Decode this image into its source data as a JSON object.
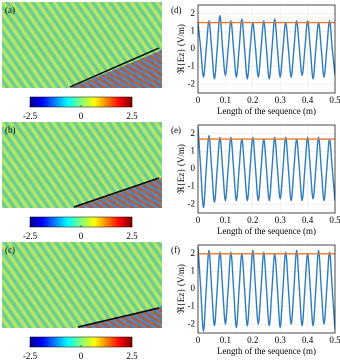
{
  "chart_data": [
    {
      "type": "field-map",
      "panel_label": "(a)",
      "colorbar": {
        "lim": [
          -2.5,
          2.5
        ],
        "ticks": [
          -2.5,
          0,
          2.5
        ]
      }
    },
    {
      "type": "field-map",
      "panel_label": "(b)",
      "colorbar": {
        "lim": [
          -2.5,
          2.5
        ],
        "ticks": [
          -2.5,
          0,
          2.5
        ]
      }
    },
    {
      "type": "field-map",
      "panel_label": "(c)",
      "colorbar": {
        "lim": [
          -2.5,
          2.5
        ],
        "ticks": [
          -2.5,
          0,
          2.5
        ]
      }
    },
    {
      "type": "line",
      "panel_label": "(d)",
      "xlabel": "Length of the sequence (m)",
      "ylabel": "ℜ{Ez} (V/m)",
      "xlim": [
        0,
        0.5
      ],
      "xticks": [
        0,
        0.1,
        0.2,
        0.3,
        0.4,
        0.5
      ],
      "ylim": [
        -2.5,
        2.5
      ],
      "yticks": [
        -2,
        -1,
        0,
        1,
        2
      ],
      "grid": true,
      "color": "#2f7dbd",
      "hline": {
        "value": 1.5,
        "color": "#e8772e"
      },
      "x": [
        0,
        0.01,
        0.02,
        0.03,
        0.04,
        0.05,
        0.06,
        0.07,
        0.08,
        0.09,
        0.1,
        0.11,
        0.12,
        0.13,
        0.14,
        0.15,
        0.16,
        0.17,
        0.18,
        0.19,
        0.2,
        0.21,
        0.22,
        0.23,
        0.24,
        0.25,
        0.26,
        0.27,
        0.28,
        0.29,
        0.3,
        0.31,
        0.32,
        0.33,
        0.34,
        0.35,
        0.36,
        0.37,
        0.38,
        0.39,
        0.4,
        0.41,
        0.42,
        0.43,
        0.44,
        0.45,
        0.46,
        0.47,
        0.48,
        0.49,
        0.5
      ],
      "values": [
        1.5,
        0,
        -1.6,
        0,
        1.6,
        0,
        -1.7,
        0,
        1.9,
        0,
        -1.5,
        0,
        1.6,
        0,
        -1.6,
        0,
        1.7,
        0,
        -1.7,
        0,
        1.5,
        0,
        -1.6,
        0,
        1.6,
        0,
        -1.7,
        0,
        1.7,
        0,
        -1.6,
        0,
        1.5,
        0,
        -1.6,
        0,
        1.6,
        0,
        -1.5,
        0,
        1.6,
        0,
        -1.7,
        0,
        1.5,
        0,
        -1.6,
        0,
        1.6,
        0,
        -1.5
      ]
    },
    {
      "type": "line",
      "panel_label": "(e)",
      "xlabel": "Length of the sequence (m)",
      "ylabel": "ℜ{Ez} (V/m)",
      "xlim": [
        0,
        0.5
      ],
      "xticks": [
        0,
        0.1,
        0.2,
        0.3,
        0.4,
        0.5
      ],
      "ylim": [
        -2.5,
        2.5
      ],
      "yticks": [
        -2,
        -1,
        0,
        1,
        2
      ],
      "grid": true,
      "color": "#2f7dbd",
      "hline": {
        "value": 1.7,
        "color": "#e8772e"
      },
      "x": [
        0,
        0.01,
        0.02,
        0.03,
        0.04,
        0.05,
        0.06,
        0.07,
        0.08,
        0.09,
        0.1,
        0.11,
        0.12,
        0.13,
        0.14,
        0.15,
        0.16,
        0.17,
        0.18,
        0.19,
        0.2,
        0.21,
        0.22,
        0.23,
        0.24,
        0.25,
        0.26,
        0.27,
        0.28,
        0.29,
        0.3,
        0.31,
        0.32,
        0.33,
        0.34,
        0.35,
        0.36,
        0.37,
        0.38,
        0.39,
        0.4,
        0.41,
        0.42,
        0.43,
        0.44,
        0.45,
        0.46,
        0.47,
        0.48,
        0.49,
        0.5
      ],
      "values": [
        2.4,
        0,
        -2.2,
        0,
        1.9,
        0,
        -1.9,
        0,
        1.8,
        0,
        -1.8,
        0,
        1.8,
        0,
        -1.8,
        0,
        1.7,
        0,
        -1.8,
        0,
        1.8,
        0,
        -1.8,
        0,
        1.7,
        0,
        -1.8,
        0,
        1.8,
        0,
        -1.7,
        0,
        1.8,
        0,
        -1.8,
        0,
        1.7,
        0,
        -1.8,
        0,
        1.8,
        0,
        -1.7,
        0,
        1.8,
        0,
        -1.8,
        0,
        1.7,
        0,
        -1.8
      ]
    },
    {
      "type": "line",
      "panel_label": "(f)",
      "xlabel": "Length of the sequence (m)",
      "ylabel": "ℜ{Ez} (V/m)",
      "xlim": [
        0,
        0.5
      ],
      "xticks": [
        0,
        0.1,
        0.2,
        0.3,
        0.4,
        0.5
      ],
      "ylim": [
        -2.5,
        2.5
      ],
      "yticks": [
        -2,
        -1,
        0,
        1,
        2
      ],
      "grid": true,
      "color": "#2f7dbd",
      "hline": {
        "value": 2,
        "color": "#e8772e"
      },
      "x": [
        0,
        0.01,
        0.02,
        0.03,
        0.04,
        0.05,
        0.06,
        0.07,
        0.08,
        0.09,
        0.1,
        0.11,
        0.12,
        0.13,
        0.14,
        0.15,
        0.16,
        0.17,
        0.18,
        0.19,
        0.2,
        0.21,
        0.22,
        0.23,
        0.24,
        0.25,
        0.26,
        0.27,
        0.28,
        0.29,
        0.3,
        0.31,
        0.32,
        0.33,
        0.34,
        0.35,
        0.36,
        0.37,
        0.38,
        0.39,
        0.4,
        0.41,
        0.42,
        0.43,
        0.44,
        0.45,
        0.46,
        0.47,
        0.48,
        0.49,
        0.5
      ],
      "values": [
        2.4,
        0,
        -2.4,
        0,
        2.2,
        0,
        -2.1,
        0,
        2.1,
        0,
        -2.0,
        0,
        2.1,
        0,
        -2.2,
        0,
        2.0,
        0,
        -2.1,
        0,
        2.2,
        0,
        -2.0,
        0,
        2.1,
        0,
        -2.1,
        0,
        2.0,
        0,
        -2.2,
        0,
        2.1,
        0,
        -2.0,
        0,
        2.2,
        0,
        -2.1,
        0,
        2.0,
        0,
        -2.1,
        0,
        2.2,
        0,
        -2.0,
        0,
        2.1,
        0,
        -2.3
      ]
    }
  ]
}
